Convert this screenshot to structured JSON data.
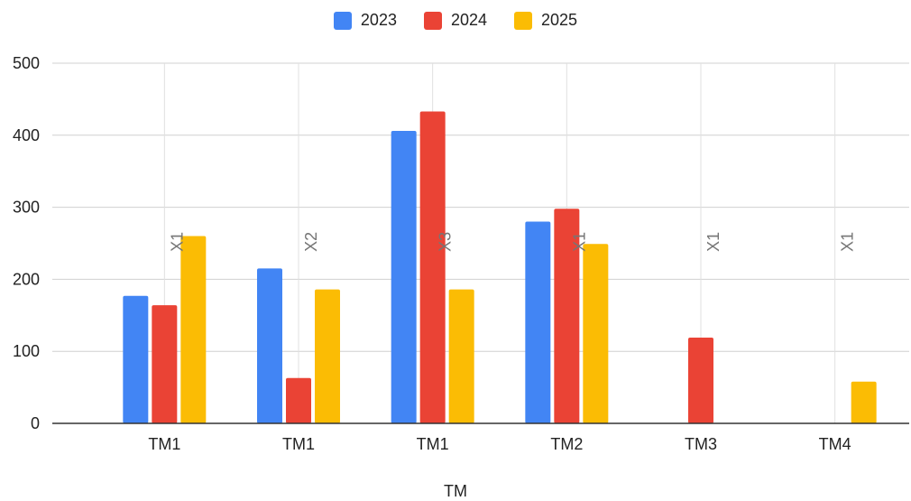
{
  "chart_data": {
    "type": "bar",
    "xlabel": "TM",
    "ylabel": "",
    "ylim": [
      0,
      500
    ],
    "yticks": [
      0,
      100,
      200,
      300,
      400,
      500
    ],
    "grid": true,
    "legend_position": "top-center",
    "categories": [
      "TM1",
      "TM1",
      "TM1",
      "TM2",
      "TM3",
      "TM4"
    ],
    "annotations": [
      "X1",
      "X2",
      "X3",
      "X1",
      "X1",
      "X1"
    ],
    "series": [
      {
        "name": "2023",
        "color": "#4285F4",
        "values": [
          177,
          215,
          406,
          280,
          null,
          null
        ]
      },
      {
        "name": "2024",
        "color": "#EA4335",
        "values": [
          164,
          63,
          433,
          298,
          119,
          null
        ]
      },
      {
        "name": "2025",
        "color": "#FBBC04",
        "values": [
          260,
          186,
          186,
          249,
          null,
          58
        ]
      }
    ]
  }
}
